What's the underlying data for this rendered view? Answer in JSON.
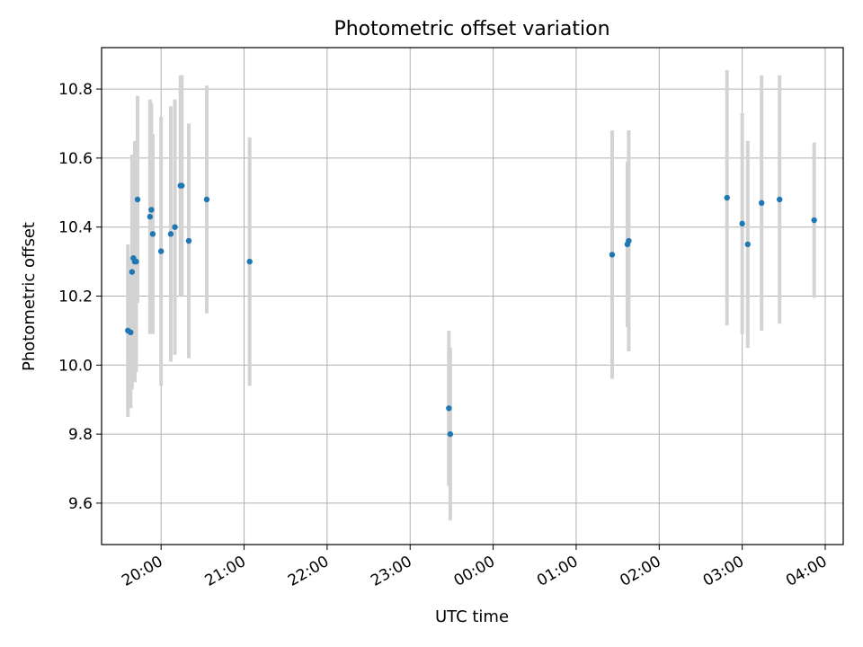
{
  "chart_data": {
    "type": "scatter",
    "title": "Photometric offset variation",
    "xlabel": "UTC time",
    "ylabel": "Photometric offset",
    "x_ticks": [
      "20:00",
      "21:00",
      "22:00",
      "23:00",
      "00:00",
      "01:00",
      "02:00",
      "03:00",
      "04:00"
    ],
    "y_ticks": [
      "9.6",
      "9.8",
      "10.0",
      "10.2",
      "10.4",
      "10.6",
      "10.8"
    ],
    "xlim": [
      "19:17",
      "28:13"
    ],
    "ylim": [
      9.48,
      10.92
    ],
    "grid": true,
    "colors": {
      "points": "#1f77b4",
      "errorbars": "#d3d3d3",
      "grid": "#b0b0b0"
    },
    "points": [
      {
        "x": "19:36",
        "y": 10.1,
        "err": 0.25
      },
      {
        "x": "19:38",
        "y": 10.095,
        "err": 0.22
      },
      {
        "x": "19:39",
        "y": 10.27,
        "err": 0.34
      },
      {
        "x": "19:40",
        "y": 10.31,
        "err": 0.3
      },
      {
        "x": "19:41",
        "y": 10.3,
        "err": 0.35
      },
      {
        "x": "19:42",
        "y": 10.3,
        "err": 0.32
      },
      {
        "x": "19:43",
        "y": 10.48,
        "err": 0.3
      },
      {
        "x": "19:52",
        "y": 10.43,
        "err": 0.34
      },
      {
        "x": "19:53",
        "y": 10.45,
        "err": 0.31
      },
      {
        "x": "19:54",
        "y": 10.38,
        "err": 0.29
      },
      {
        "x": "20:00",
        "y": 10.33,
        "err": 0.39
      },
      {
        "x": "20:07",
        "y": 10.38,
        "err": 0.37
      },
      {
        "x": "20:10",
        "y": 10.4,
        "err": 0.37
      },
      {
        "x": "20:14",
        "y": 10.52,
        "err": 0.32
      },
      {
        "x": "20:15",
        "y": 10.52,
        "err": 0.32
      },
      {
        "x": "20:20",
        "y": 10.36,
        "err": 0.34
      },
      {
        "x": "20:33",
        "y": 10.48,
        "err": 0.33
      },
      {
        "x": "21:04",
        "y": 10.3,
        "err": 0.36
      },
      {
        "x": "23:28",
        "y": 9.875,
        "err": 0.225
      },
      {
        "x": "23:29",
        "y": 9.8,
        "err": 0.25
      },
      {
        "x": "25:26",
        "y": 10.32,
        "err": 0.36
      },
      {
        "x": "25:37",
        "y": 10.35,
        "err": 0.24
      },
      {
        "x": "25:38",
        "y": 10.36,
        "err": 0.32
      },
      {
        "x": "26:49",
        "y": 10.485,
        "err": 0.37
      },
      {
        "x": "27:00",
        "y": 10.41,
        "err": 0.32
      },
      {
        "x": "27:04",
        "y": 10.35,
        "err": 0.3
      },
      {
        "x": "27:14",
        "y": 10.47,
        "err": 0.37
      },
      {
        "x": "27:27",
        "y": 10.48,
        "err": 0.36
      },
      {
        "x": "27:52",
        "y": 10.42,
        "err": 0.225
      }
    ]
  }
}
